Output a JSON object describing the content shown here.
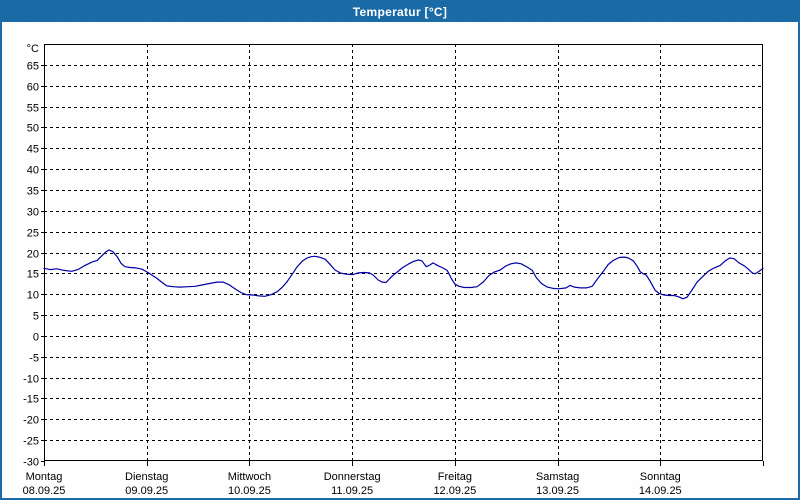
{
  "window": {
    "title": "Temperatur [°C]",
    "title_bar_color": "#1a6ca8",
    "frame_color": "#1a6ca8",
    "background_color": "#fefefe"
  },
  "chart_data": {
    "type": "line",
    "title": "Temperatur [°C]",
    "ylabel": "°C",
    "xlabel": "",
    "ylim": [
      -30,
      70
    ],
    "x_hours_range": [
      0,
      168
    ],
    "grid": "dashed",
    "legend": "none",
    "line_color": "#0000aa",
    "grid_color": "#000000",
    "y_axis": {
      "unit_label": "°C",
      "tick_labels": [
        65,
        60,
        55,
        50,
        45,
        40,
        35,
        30,
        25,
        20,
        15,
        10,
        5,
        0,
        -5,
        -10,
        -15,
        -20,
        -25,
        -30
      ]
    },
    "x_axis": {
      "days": [
        {
          "name": "Montag",
          "date": "08.09.25"
        },
        {
          "name": "Dienstag",
          "date": "09.09.25"
        },
        {
          "name": "Mittwoch",
          "date": "10.09.25"
        },
        {
          "name": "Donnerstag",
          "date": "11.09.25"
        },
        {
          "name": "Freitag",
          "date": "12.09.25"
        },
        {
          "name": "Samstag",
          "date": "13.09.25"
        },
        {
          "name": "Sonntag",
          "date": "14.09.25"
        }
      ]
    },
    "series": [
      {
        "name": "Temperatur",
        "points_hours_degC": [
          [
            0,
            16.2
          ],
          [
            1.4,
            15.9
          ],
          [
            3,
            16.1
          ],
          [
            4.7,
            15.7
          ],
          [
            6.5,
            15.5
          ],
          [
            7.9,
            15.9
          ],
          [
            9.6,
            16.9
          ],
          [
            11.2,
            17.7
          ],
          [
            12.4,
            18.1
          ],
          [
            13.6,
            19.3
          ],
          [
            14.5,
            20.2
          ],
          [
            15.2,
            20.6
          ],
          [
            16.1,
            20.2
          ],
          [
            17.1,
            19
          ],
          [
            18,
            17.4
          ],
          [
            18.9,
            16.6
          ],
          [
            20.1,
            16.4
          ],
          [
            21.5,
            16.3
          ],
          [
            22.9,
            16
          ],
          [
            24.3,
            15.2
          ],
          [
            25.2,
            14.6
          ],
          [
            26.4,
            13.8
          ],
          [
            27.6,
            12.8
          ],
          [
            28.7,
            12
          ],
          [
            30.2,
            11.8
          ],
          [
            31.8,
            11.7
          ],
          [
            33.7,
            11.8
          ],
          [
            35.3,
            11.9
          ],
          [
            36.9,
            12.2
          ],
          [
            38.8,
            12.6
          ],
          [
            40.4,
            12.9
          ],
          [
            41.8,
            12.9
          ],
          [
            43.2,
            12.3
          ],
          [
            44.6,
            11.3
          ],
          [
            46,
            10.4
          ],
          [
            47.2,
            9.9
          ],
          [
            48.8,
            9.8
          ],
          [
            50.2,
            9.6
          ],
          [
            51.6,
            9.5
          ],
          [
            53.1,
            9.9
          ],
          [
            54.5,
            10.6
          ],
          [
            55.6,
            11.6
          ],
          [
            56.8,
            13
          ],
          [
            58,
            14.8
          ],
          [
            59.1,
            16.5
          ],
          [
            60.3,
            17.9
          ],
          [
            61.5,
            18.7
          ],
          [
            62.4,
            19
          ],
          [
            63.3,
            19.1
          ],
          [
            64.3,
            18.9
          ],
          [
            65.7,
            18.4
          ],
          [
            66.8,
            17.2
          ],
          [
            68,
            15.8
          ],
          [
            69.2,
            15.1
          ],
          [
            70.6,
            14.8
          ],
          [
            72.2,
            14.7
          ],
          [
            73.4,
            15.1
          ],
          [
            74.8,
            15.2
          ],
          [
            76,
            15.1
          ],
          [
            76.9,
            14.6
          ],
          [
            78.1,
            13.4
          ],
          [
            79,
            12.9
          ],
          [
            79.9,
            12.8
          ],
          [
            81.3,
            14.3
          ],
          [
            82.5,
            15.3
          ],
          [
            83.7,
            16.3
          ],
          [
            85.1,
            17.2
          ],
          [
            86.2,
            17.8
          ],
          [
            87.4,
            18.2
          ],
          [
            88.3,
            18
          ],
          [
            89.3,
            16.6
          ],
          [
            90.2,
            17
          ],
          [
            90.9,
            17.5
          ],
          [
            92.1,
            16.8
          ],
          [
            93,
            16.4
          ],
          [
            94.2,
            15.7
          ],
          [
            95.1,
            13.9
          ],
          [
            96,
            12.4
          ],
          [
            97,
            11.9
          ],
          [
            98.2,
            11.6
          ],
          [
            99.8,
            11.6
          ],
          [
            101.2,
            11.8
          ],
          [
            102.6,
            12.9
          ],
          [
            104,
            14.5
          ],
          [
            105.2,
            15.3
          ],
          [
            106.6,
            15.8
          ],
          [
            108,
            16.8
          ],
          [
            109.1,
            17.3
          ],
          [
            110.3,
            17.5
          ],
          [
            111.5,
            17.3
          ],
          [
            112.9,
            16.5
          ],
          [
            114.1,
            15.7
          ],
          [
            115,
            14
          ],
          [
            116.2,
            12.6
          ],
          [
            117.6,
            11.7
          ],
          [
            119,
            11.4
          ],
          [
            120.1,
            11.3
          ],
          [
            121.1,
            11.4
          ],
          [
            122,
            11.5
          ],
          [
            122.9,
            12.1
          ],
          [
            123.9,
            11.7
          ],
          [
            125.3,
            11.5
          ],
          [
            126.7,
            11.5
          ],
          [
            128.1,
            11.9
          ],
          [
            129.5,
            13.9
          ],
          [
            130.7,
            15.5
          ],
          [
            131.8,
            17.1
          ],
          [
            133,
            18.1
          ],
          [
            134.4,
            18.8
          ],
          [
            135.6,
            18.9
          ],
          [
            136.5,
            18.7
          ],
          [
            137.7,
            18
          ],
          [
            138.6,
            16.7
          ],
          [
            139.3,
            15.4
          ],
          [
            140,
            14.9
          ],
          [
            140.7,
            14.6
          ],
          [
            141.6,
            13.2
          ],
          [
            142.8,
            10.9
          ],
          [
            143.7,
            10.2
          ],
          [
            144.9,
            9.8
          ],
          [
            146.1,
            9.7
          ],
          [
            147.2,
            9.7
          ],
          [
            148.2,
            9.4
          ],
          [
            149.3,
            8.9
          ],
          [
            150.3,
            9.3
          ],
          [
            151.4,
            11
          ],
          [
            152.6,
            12.9
          ],
          [
            153.8,
            14.1
          ],
          [
            155.2,
            15.5
          ],
          [
            156.6,
            16.3
          ],
          [
            158,
            16.9
          ],
          [
            159.2,
            18
          ],
          [
            160.3,
            18.7
          ],
          [
            161.3,
            18.5
          ],
          [
            162.4,
            17.5
          ],
          [
            163.6,
            16.8
          ],
          [
            164.5,
            16.1
          ],
          [
            165.5,
            15.1
          ],
          [
            166.2,
            14.9
          ],
          [
            167.1,
            15.5
          ],
          [
            168,
            16.2
          ]
        ]
      }
    ]
  }
}
